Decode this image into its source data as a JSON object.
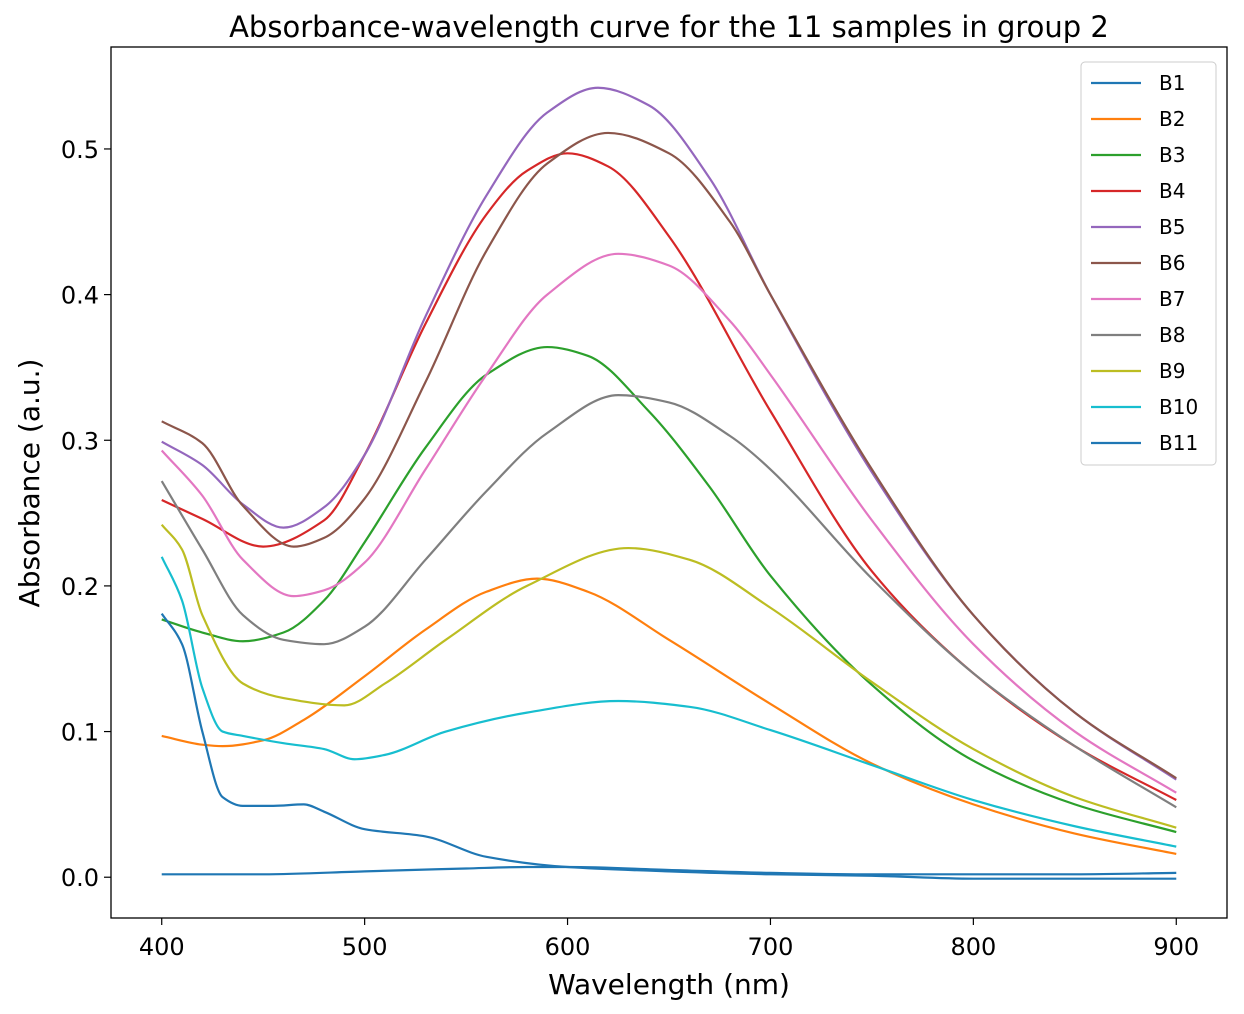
{
  "chart_data": {
    "type": "line",
    "title": "Absorbance-wavelength curve for the 11 samples in group 2",
    "xlabel": "Wavelength (nm)",
    "ylabel": "Absorbance (a.u.)",
    "xlim": [
      375,
      925
    ],
    "ylim": [
      -0.028,
      0.57
    ],
    "xticks": [
      400,
      500,
      600,
      700,
      800,
      900
    ],
    "yticks": [
      0.0,
      0.1,
      0.2,
      0.3,
      0.4,
      0.5
    ],
    "ytick_labels": [
      "0.0",
      "0.1",
      "0.2",
      "0.3",
      "0.4",
      "0.5"
    ],
    "grid": false,
    "legend_position": "top-right",
    "series": [
      {
        "name": "B1",
        "color": "#1f77b4",
        "x": [
          400,
          450,
          500,
          550,
          580,
          600,
          650,
          700,
          750,
          800,
          850,
          900
        ],
        "y": [
          0.002,
          0.002,
          0.004,
          0.006,
          0.007,
          0.007,
          0.005,
          0.003,
          0.002,
          0.002,
          0.002,
          0.003
        ]
      },
      {
        "name": "B2",
        "color": "#ff7f0e",
        "x": [
          400,
          420,
          430,
          450,
          470,
          500,
          530,
          560,
          585,
          610,
          650,
          700,
          750,
          800,
          850,
          900
        ],
        "y": [
          0.097,
          0.091,
          0.09,
          0.094,
          0.108,
          0.138,
          0.17,
          0.196,
          0.205,
          0.196,
          0.163,
          0.119,
          0.078,
          0.05,
          0.03,
          0.016
        ]
      },
      {
        "name": "B3",
        "color": "#2ca02c",
        "x": [
          400,
          420,
          440,
          460,
          480,
          500,
          530,
          560,
          590,
          610,
          640,
          670,
          700,
          750,
          800,
          850,
          900
        ],
        "y": [
          0.177,
          0.168,
          0.162,
          0.168,
          0.19,
          0.23,
          0.295,
          0.345,
          0.364,
          0.358,
          0.32,
          0.268,
          0.207,
          0.132,
          0.08,
          0.05,
          0.031
        ]
      },
      {
        "name": "B4",
        "color": "#d62728",
        "x": [
          400,
          420,
          450,
          480,
          500,
          530,
          560,
          580,
          600,
          620,
          650,
          700,
          750,
          800,
          850,
          900
        ],
        "y": [
          0.259,
          0.246,
          0.227,
          0.245,
          0.29,
          0.38,
          0.455,
          0.485,
          0.497,
          0.488,
          0.44,
          0.32,
          0.21,
          0.14,
          0.09,
          0.053
        ]
      },
      {
        "name": "B5",
        "color": "#9467bd",
        "x": [
          400,
          420,
          440,
          460,
          480,
          500,
          530,
          560,
          590,
          615,
          640,
          670,
          700,
          750,
          800,
          850,
          900
        ],
        "y": [
          0.299,
          0.283,
          0.256,
          0.24,
          0.254,
          0.29,
          0.385,
          0.468,
          0.525,
          0.542,
          0.53,
          0.48,
          0.4,
          0.278,
          0.18,
          0.113,
          0.067
        ]
      },
      {
        "name": "B6",
        "color": "#8c564b",
        "x": [
          400,
          420,
          440,
          465,
          480,
          500,
          530,
          560,
          590,
          620,
          650,
          680,
          700,
          750,
          800,
          850,
          900
        ],
        "y": [
          0.313,
          0.298,
          0.255,
          0.227,
          0.233,
          0.26,
          0.34,
          0.43,
          0.49,
          0.511,
          0.497,
          0.45,
          0.4,
          0.28,
          0.18,
          0.113,
          0.068
        ]
      },
      {
        "name": "B7",
        "color": "#e377c2",
        "x": [
          400,
          420,
          440,
          465,
          480,
          500,
          530,
          560,
          590,
          625,
          650,
          680,
          700,
          750,
          800,
          850,
          900
        ],
        "y": [
          0.293,
          0.262,
          0.218,
          0.193,
          0.197,
          0.216,
          0.28,
          0.345,
          0.4,
          0.428,
          0.42,
          0.382,
          0.345,
          0.245,
          0.16,
          0.1,
          0.058
        ]
      },
      {
        "name": "B8",
        "color": "#7f7f7f",
        "x": [
          400,
          420,
          440,
          460,
          480,
          500,
          530,
          560,
          590,
          625,
          650,
          680,
          700,
          750,
          800,
          850,
          900
        ],
        "y": [
          0.272,
          0.225,
          0.18,
          0.163,
          0.16,
          0.172,
          0.218,
          0.265,
          0.305,
          0.331,
          0.326,
          0.303,
          0.28,
          0.205,
          0.14,
          0.09,
          0.048
        ]
      },
      {
        "name": "B9",
        "color": "#bcbd22",
        "x": [
          400,
          410,
          420,
          440,
          460,
          490,
          510,
          540,
          580,
          630,
          660,
          700,
          750,
          800,
          850,
          900
        ],
        "y": [
          0.242,
          0.225,
          0.18,
          0.133,
          0.123,
          0.118,
          0.133,
          0.163,
          0.2,
          0.226,
          0.218,
          0.185,
          0.134,
          0.088,
          0.055,
          0.034
        ]
      },
      {
        "name": "B10",
        "color": "#17becf",
        "x": [
          400,
          410,
          420,
          430,
          440,
          460,
          480,
          495,
          510,
          540,
          580,
          625,
          660,
          700,
          750,
          800,
          850,
          900
        ],
        "y": [
          0.22,
          0.19,
          0.13,
          0.1,
          0.097,
          0.092,
          0.088,
          0.081,
          0.084,
          0.1,
          0.113,
          0.121,
          0.117,
          0.101,
          0.077,
          0.053,
          0.035,
          0.021
        ]
      },
      {
        "name": "B11",
        "color": "#1f77b4",
        "x": [
          400,
          410,
          420,
          430,
          440,
          455,
          470,
          480,
          500,
          530,
          560,
          600,
          650,
          700,
          750,
          800,
          850,
          900
        ],
        "y": [
          0.181,
          0.16,
          0.1,
          0.055,
          0.049,
          0.049,
          0.05,
          0.045,
          0.033,
          0.028,
          0.014,
          0.007,
          0.004,
          0.002,
          0.001,
          -0.001,
          -0.001,
          -0.001
        ]
      }
    ]
  }
}
